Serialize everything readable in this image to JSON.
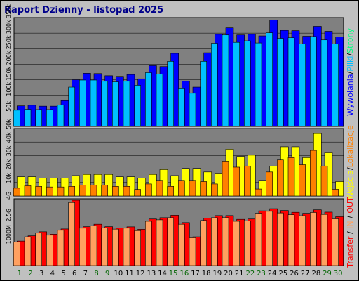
{
  "title": "Raport Dzienny -  listopad 2025",
  "days": [
    "1",
    "2",
    "3",
    "4",
    "5",
    "6",
    "7",
    "8",
    "9",
    "10",
    "11",
    "12",
    "13",
    "14",
    "15",
    "16",
    "17",
    "18",
    "19",
    "20",
    "21",
    "22",
    "23",
    "24",
    "25",
    "26",
    "27",
    "28",
    "29",
    "30"
  ],
  "weekend_days": [
    "1",
    "2",
    "8",
    "9",
    "15",
    "16",
    "22",
    "23",
    "29",
    "30"
  ],
  "colors": {
    "background": "#c0c0c0",
    "plot_background": "#808080",
    "wywolania": "#0000ff",
    "pliki": "#00c0ff",
    "strony": "#00ff80",
    "wejscia": "#ffff00",
    "lokalizacje": "#ff8000",
    "transfer_out": "#ff0000",
    "transfer_in": "#ffa060",
    "weekend_label": "#006400",
    "weekday_label": "#000000"
  },
  "chart_data": [
    {
      "type": "bar",
      "name": "top",
      "ylim": [
        0,
        350000
      ],
      "yticks": [
        "50k",
        "100k",
        "150k",
        "200k",
        "250k",
        "300k",
        "350k"
      ],
      "legend": [
        {
          "text": "Wywołania",
          "color": "#0000ff"
        },
        {
          "text": "Pliki",
          "color": "#00c0ff"
        },
        {
          "text": "Strony",
          "color": "#00ff80"
        }
      ],
      "series": [
        {
          "name": "Wywołania",
          "values": [
            67000,
            69000,
            66000,
            66000,
            84000,
            152000,
            173000,
            172000,
            165000,
            163000,
            169000,
            155000,
            198000,
            195000,
            238000,
            147000,
            128000,
            240000,
            300000,
            321000,
            298000,
            300000,
            295000,
            347000,
            313000,
            312000,
            294000,
            326000,
            310000,
            292000
          ]
        },
        {
          "name": "Pliki",
          "values": [
            53000,
            56000,
            55000,
            55000,
            70000,
            128000,
            151000,
            151000,
            147000,
            145000,
            147000,
            134000,
            175000,
            170000,
            212000,
            125000,
            108000,
            212000,
            271000,
            298000,
            274000,
            279000,
            272000,
            305000,
            287000,
            289000,
            269000,
            293000,
            282000,
            269000
          ]
        },
        {
          "name": "Strony",
          "values": []
        }
      ]
    },
    {
      "type": "bar",
      "name": "middle",
      "ylim": [
        0,
        55000
      ],
      "yticks": [
        "10k",
        "20k",
        "30k",
        "40k",
        "50k"
      ],
      "legend": [
        {
          "text": "Wejścia",
          "color": "#ffff00"
        },
        {
          "text": "Lokalizacje",
          "color": "#ff8000"
        }
      ],
      "series": [
        {
          "name": "Wejścia",
          "values": [
            16000,
            16000,
            15000,
            15000,
            15000,
            17000,
            18000,
            18000,
            18000,
            16000,
            16000,
            15000,
            18000,
            22000,
            17000,
            23000,
            23000,
            20000,
            19000,
            39000,
            33000,
            34000,
            13000,
            25000,
            41000,
            41000,
            32000,
            52000,
            36000,
            12000
          ]
        },
        {
          "name": "Lokalizacje",
          "values": [
            6500,
            8500,
            8000,
            7500,
            7500,
            8000,
            9000,
            9000,
            9000,
            8000,
            8000,
            5500,
            10000,
            13000,
            8000,
            13000,
            13000,
            12000,
            10000,
            29000,
            24000,
            25000,
            5800,
            20000,
            30000,
            32000,
            26000,
            38000,
            25000,
            5600
          ]
        }
      ]
    },
    {
      "type": "bar",
      "name": "bottom",
      "ylim": [
        0,
        4000
      ],
      "yticks": [
        "1000M",
        "2.5G",
        "4G"
      ],
      "legend": [
        {
          "text": "Transfer",
          "color": "#ff0000"
        },
        {
          "text": "IN",
          "color": "#ffa060"
        },
        {
          "text": "OUT",
          "color": "#ff0000"
        }
      ],
      "series": [
        {
          "name": "OUT",
          "values": [
            1500,
            1820,
            2070,
            1920,
            2240,
            4000,
            2380,
            2530,
            2380,
            2300,
            2370,
            2220,
            2850,
            2930,
            3080,
            2630,
            1760,
            2900,
            3060,
            3060,
            2830,
            2850,
            3350,
            3480,
            3370,
            3260,
            3200,
            3410,
            3270,
            2990
          ]
        },
        {
          "name": "IN",
          "values": [
            1450,
            1760,
            1990,
            1860,
            2160,
            3860,
            2290,
            2440,
            2310,
            2230,
            2290,
            2140,
            2710,
            2800,
            2930,
            2530,
            1700,
            2760,
            2930,
            2930,
            2710,
            2740,
            3200,
            3320,
            3220,
            3110,
            3050,
            3250,
            3130,
            2860
          ]
        }
      ]
    }
  ]
}
